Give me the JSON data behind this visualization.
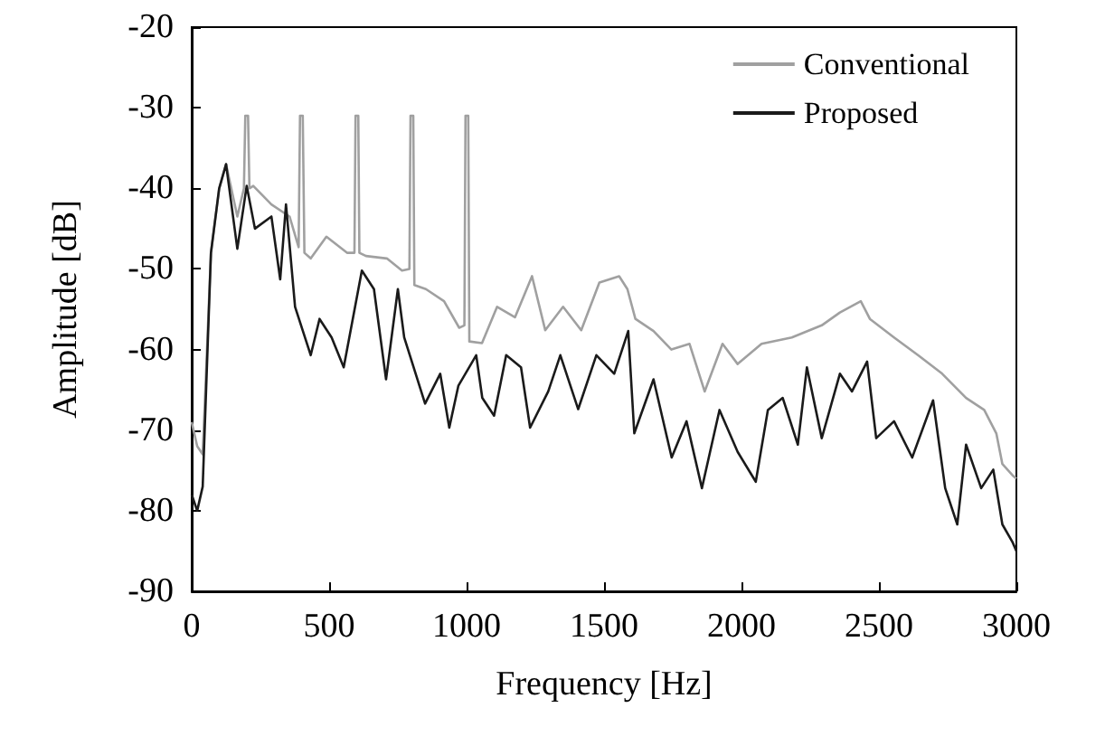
{
  "chart_data": {
    "type": "line",
    "xlabel": "Frequency [Hz]",
    "ylabel": "Amplitude [dB]",
    "xlim": [
      0,
      3000
    ],
    "xticks": [
      0,
      500,
      1000,
      1500,
      2000,
      2500,
      3000
    ],
    "ylim": [
      -90,
      -20
    ],
    "yticks": [
      -90,
      -80,
      -70,
      -60,
      -50,
      -40,
      -30,
      -20
    ],
    "grid": false,
    "legend": "top right",
    "marker": "none",
    "line_style": "solid",
    "series": [
      {
        "name": "Conventional",
        "color": "#a0a0a0",
        "x": [
          0,
          20,
          40,
          70,
          100,
          125,
          166,
          190,
          195,
          205,
          210,
          224,
          290,
          356,
          389,
          394,
          404,
          410,
          433,
          490,
          565,
          592,
          596,
          606,
          610,
          634,
          710,
          765,
          792,
          796,
          806,
          810,
          852,
          918,
          973,
          992,
          996,
          1006,
          1010,
          1056,
          1111,
          1176,
          1238,
          1286,
          1351,
          1417,
          1483,
          1555,
          1585,
          1614,
          1680,
          1745,
          1811,
          1866,
          1931,
          1986,
          2073,
          2183,
          2292,
          2358,
          2434,
          2467,
          2555,
          2642,
          2730,
          2817,
          2883,
          2927,
          2949,
          2986,
          3000
        ],
        "values": [
          -69,
          -72,
          -73,
          -48,
          -40,
          -37,
          -43.5,
          -40,
          -31,
          -31,
          -40,
          -39.7,
          -42,
          -43.5,
          -47.3,
          -31,
          -31,
          -48,
          -48.7,
          -46,
          -48,
          -48,
          -31,
          -31,
          -48,
          -48.4,
          -48.7,
          -50.2,
          -50,
          -31,
          -31,
          -52,
          -52.5,
          -54,
          -57.3,
          -57,
          -31,
          -31,
          -59,
          -59.2,
          -54.7,
          -56,
          -50.9,
          -57.6,
          -54.7,
          -57.6,
          -51.7,
          -50.9,
          -52.5,
          -56.2,
          -57.7,
          -60,
          -59.3,
          -65.2,
          -59.3,
          -61.8,
          -59.3,
          -58.5,
          -57,
          -55.4,
          -54,
          -56.2,
          -58.5,
          -60.7,
          -63,
          -66,
          -67.5,
          -70.4,
          -74.2,
          -75.6,
          -76
        ]
      },
      {
        "name": "Proposed",
        "color": "#1a1a1a",
        "x": [
          0,
          20,
          40,
          70,
          100,
          125,
          166,
          200,
          230,
          290,
          322,
          343,
          376,
          433,
          465,
          509,
          553,
          619,
          663,
          707,
          750,
          773,
          849,
          904,
          937,
          970,
          1035,
          1057,
          1100,
          1144,
          1198,
          1231,
          1297,
          1341,
          1406,
          1472,
          1537,
          1588,
          1610,
          1680,
          1746,
          1800,
          1856,
          1920,
          1986,
          2052,
          2096,
          2150,
          2205,
          2238,
          2292,
          2358,
          2402,
          2457,
          2490,
          2555,
          2621,
          2697,
          2741,
          2785,
          2817,
          2872,
          2916,
          2949,
          2986,
          3000
        ],
        "values": [
          -78,
          -80,
          -77,
          -48,
          -40,
          -37,
          -47.5,
          -39.7,
          -45,
          -43.5,
          -51.3,
          -42,
          -54.7,
          -60.7,
          -56.2,
          -58.5,
          -62.2,
          -50.2,
          -52.5,
          -63.7,
          -52.5,
          -58.5,
          -66.7,
          -63,
          -69.7,
          -64.5,
          -60.7,
          -66,
          -68.2,
          -60.7,
          -62.2,
          -69.7,
          -65.2,
          -60.7,
          -67.4,
          -60.7,
          -63,
          -57.7,
          -70.4,
          -63.7,
          -73.4,
          -68.9,
          -77.2,
          -67.5,
          -72.7,
          -76.4,
          -67.5,
          -66,
          -71.8,
          -62.2,
          -71,
          -63,
          -65.2,
          -61.5,
          -71,
          -68.9,
          -73.4,
          -66.3,
          -77.2,
          -81.7,
          -71.8,
          -77.2,
          -74.9,
          -81.7,
          -83.9,
          -85
        ]
      }
    ]
  }
}
